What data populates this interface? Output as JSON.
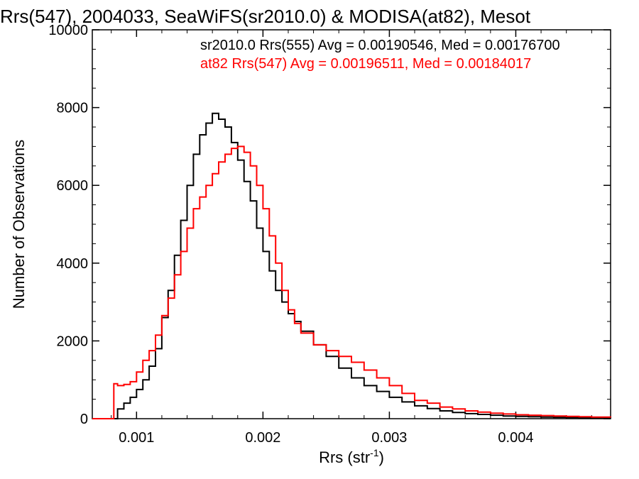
{
  "chart_data": {
    "type": "line",
    "title": "Rrs(547), 2004033, SeaWiFS(sr2010.0) & MODISA(at82), Mesot",
    "xlabel_main": "Rrs (str",
    "xlabel_sup": "-1",
    "xlabel_close": ")",
    "ylabel": "Number of Observations",
    "xlim": [
      0.00065,
      0.00475
    ],
    "ylim": [
      0,
      10000
    ],
    "x_ticks": [
      {
        "value": 0.001,
        "label": "0.001"
      },
      {
        "value": 0.002,
        "label": "0.002"
      },
      {
        "value": 0.003,
        "label": "0.003"
      },
      {
        "value": 0.004,
        "label": "0.004"
      }
    ],
    "y_ticks": [
      {
        "value": 0,
        "label": "0"
      },
      {
        "value": 2000,
        "label": "2000"
      },
      {
        "value": 4000,
        "label": "4000"
      },
      {
        "value": 6000,
        "label": "6000"
      },
      {
        "value": 8000,
        "label": "8000"
      },
      {
        "value": 10000,
        "label": "10000"
      }
    ],
    "annotations": [
      {
        "text": "sr2010.0 Rrs(555) Avg = 0.00190546, Med = 0.00176700",
        "color": "#000000"
      },
      {
        "text": "at82 Rrs(547) Avg = 0.00196511, Med = 0.00184017",
        "color": "#ff0000"
      }
    ],
    "series": [
      {
        "color": "#000000",
        "x": [
          0.00065,
          0.0008,
          0.00085,
          0.0009,
          0.00095,
          0.001,
          0.00105,
          0.0011,
          0.00115,
          0.0012,
          0.00125,
          0.0013,
          0.00135,
          0.0014,
          0.00145,
          0.0015,
          0.00155,
          0.0016,
          0.00165,
          0.0017,
          0.00175,
          0.0018,
          0.00185,
          0.0019,
          0.00195,
          0.002,
          0.00205,
          0.0021,
          0.00215,
          0.0022,
          0.00225,
          0.0023,
          0.0024,
          0.0025,
          0.0026,
          0.0027,
          0.0028,
          0.0029,
          0.003,
          0.0031,
          0.0032,
          0.0033,
          0.0034,
          0.0035,
          0.0036,
          0.0037,
          0.0038,
          0.0039,
          0.004,
          0.0041,
          0.0042,
          0.0043,
          0.0044,
          0.0045,
          0.0046,
          0.00475
        ],
        "y": [
          0,
          0,
          250,
          400,
          550,
          750,
          1000,
          1350,
          1800,
          2600,
          3300,
          4200,
          5100,
          6000,
          6800,
          7300,
          7600,
          7850,
          7700,
          7500,
          7100,
          6650,
          6100,
          5600,
          4900,
          4300,
          3800,
          3300,
          3000,
          2700,
          2500,
          2250,
          1900,
          1600,
          1300,
          1050,
          850,
          700,
          550,
          430,
          330,
          260,
          200,
          160,
          130,
          110,
          90,
          70,
          60,
          50,
          40,
          35,
          30,
          25,
          20,
          15
        ]
      },
      {
        "color": "#ff0000",
        "x": [
          0.00065,
          0.0008,
          0.00082,
          0.00085,
          0.0009,
          0.00095,
          0.001,
          0.00105,
          0.0011,
          0.00115,
          0.0012,
          0.00125,
          0.0013,
          0.00135,
          0.0014,
          0.00145,
          0.0015,
          0.00155,
          0.0016,
          0.00165,
          0.0017,
          0.00175,
          0.0018,
          0.00185,
          0.0019,
          0.00195,
          0.002,
          0.00205,
          0.0021,
          0.00215,
          0.0022,
          0.00225,
          0.0023,
          0.0024,
          0.0025,
          0.0026,
          0.0027,
          0.0028,
          0.0029,
          0.003,
          0.0031,
          0.0032,
          0.0033,
          0.0034,
          0.0035,
          0.0036,
          0.0037,
          0.0038,
          0.0039,
          0.004,
          0.0041,
          0.0042,
          0.0043,
          0.0044,
          0.0045,
          0.0046,
          0.00475
        ],
        "y": [
          0,
          0,
          900,
          850,
          880,
          950,
          1200,
          1500,
          1750,
          2150,
          2650,
          3100,
          3700,
          4300,
          4900,
          5400,
          5700,
          6000,
          6300,
          6600,
          6800,
          6950,
          7000,
          6850,
          6500,
          6000,
          5400,
          4700,
          4000,
          3300,
          2800,
          2450,
          2200,
          1900,
          1750,
          1600,
          1450,
          1250,
          1050,
          850,
          650,
          470,
          400,
          300,
          250,
          200,
          170,
          140,
          120,
          100,
          90,
          80,
          70,
          60,
          50,
          40,
          30
        ]
      }
    ]
  }
}
